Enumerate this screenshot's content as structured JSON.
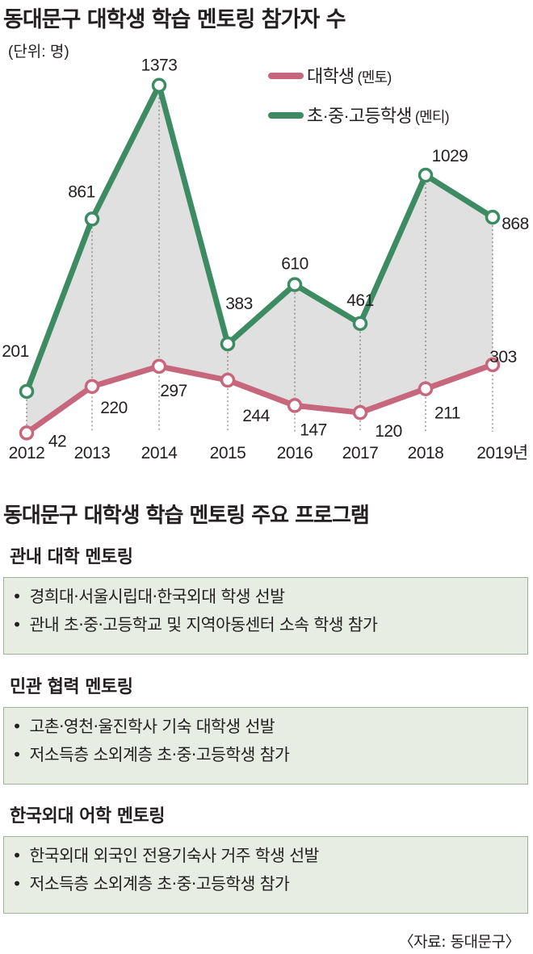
{
  "title": "동대문구 대학생 학습 멘토링 참가자 수",
  "chart_data": {
    "type": "line",
    "unit_label": "(단위: 명)",
    "categories": [
      "2012",
      "2013",
      "2014",
      "2015",
      "2016",
      "2017",
      "2018",
      "2019년"
    ],
    "series": [
      {
        "name": "대학생",
        "name_suffix": "(멘토)",
        "color": "#c7677d",
        "values": [
          42,
          220,
          297,
          244,
          147,
          120,
          211,
          303
        ]
      },
      {
        "name": "초·중·고등학생",
        "name_suffix": "(멘티)",
        "color": "#3d8b62",
        "values": [
          201,
          861,
          1373,
          383,
          610,
          461,
          1029,
          868
        ]
      }
    ],
    "fill_between_color": "#e0e0e0",
    "ylim": [
      0,
      1400
    ],
    "legend_position": "top-right"
  },
  "programs_title": "동대문구 대학생 학습 멘토링 주요 프로그램",
  "bullet": "•",
  "programs": [
    {
      "name": "관내 대학 멘토링",
      "items": [
        "경희대·서울시립대·한국외대 학생 선발",
        "관내 초·중·고등학교 및 지역아동센터 소속 학생 참가"
      ]
    },
    {
      "name": "민관 협력 멘토링",
      "items": [
        "고촌·영천·울진학사 기숙 대학생 선발",
        "저소득층 소외계층 초·중·고등학생 참가"
      ]
    },
    {
      "name": "한국외대 어학 멘토링",
      "items": [
        "한국외대 외국인 전용기숙사 거주 학생 선발",
        "저소득층 소외계층 초·중·고등학생 참가"
      ]
    }
  ],
  "source": "〈자료: 동대문구〉"
}
